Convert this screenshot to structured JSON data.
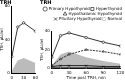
{
  "chart_data": [
    {
      "type": "line",
      "title": "TRH",
      "y_label": "TSH, μU/ml",
      "x": [
        0,
        15,
        30,
        60
      ],
      "xlim": [
        0,
        60
      ],
      "xticks": [
        0,
        30,
        60
      ],
      "ylim": [
        0,
        80
      ],
      "yticks": [
        0,
        40,
        80
      ],
      "grid": false,
      "series": [
        {
          "name": "Normal",
          "type": "area",
          "color": "#bbbbbb",
          "values": [
            3,
            15,
            18,
            12
          ]
        },
        {
          "name": "Primary Hypothyroid",
          "color": "#000000",
          "marker": "circle",
          "line_style": "solid",
          "values": [
            20,
            55,
            60,
            50
          ]
        }
      ]
    },
    {
      "type": "line",
      "title": "TRH",
      "x_label": "Time post TRH, min",
      "y_label": "TSH, μU/ml",
      "x": [
        0,
        15,
        30,
        60,
        90,
        120
      ],
      "xlim": [
        0,
        120
      ],
      "xticks": [
        0,
        30,
        60,
        90,
        120
      ],
      "ylim": [
        0,
        40
      ],
      "yticks": [
        0,
        20,
        40
      ],
      "grid": false,
      "legend": "top right",
      "series": [
        {
          "name": "Primary Hypothyroid",
          "color": "#000000",
          "marker": "circle",
          "line_style": "solid",
          "values": [
            12,
            35,
            38,
            33,
            28,
            24
          ]
        },
        {
          "name": "Hyperthyroid",
          "color": "#000000",
          "marker": "rect",
          "line_style": "solid",
          "values": [
            0.5,
            0.5,
            0.5,
            0.5,
            0.5,
            0.5
          ]
        },
        {
          "name": "Hypothalamic Hypothyroid",
          "color": "#000000",
          "marker": "triangle",
          "line_style": "dashed",
          "values": [
            3,
            10,
            15,
            20,
            18,
            15
          ]
        },
        {
          "name": "Pituitary Hypothyroid",
          "color": "#000000",
          "marker": "crossRot",
          "line_style": "solid",
          "values": [
            2,
            3,
            3,
            3,
            2,
            2
          ]
        },
        {
          "name": "Normal",
          "type": "area",
          "color": "#bbbbbb",
          "values": [
            3,
            15,
            18,
            12,
            8,
            5
          ]
        }
      ]
    }
  ]
}
